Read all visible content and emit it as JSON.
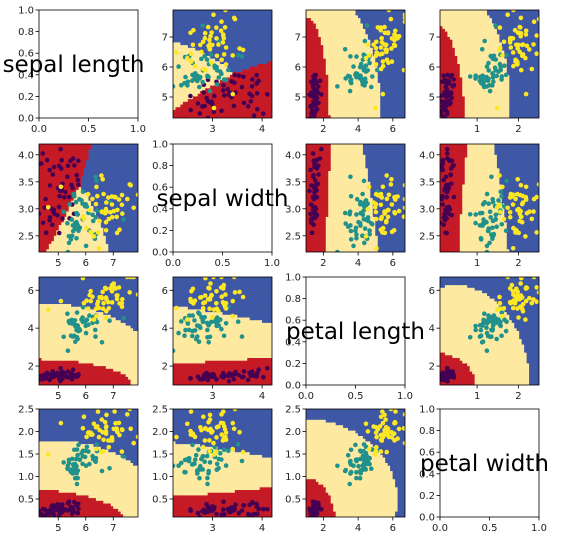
{
  "features": [
    "sepal length",
    "sepal width",
    "petal length",
    "petal width"
  ],
  "colors": {
    "class_0": "#440154",
    "class_1": "#21918c",
    "class_2": "#fde725",
    "region_0": "#c51b27",
    "region_1": "#fdeaa0",
    "region_2": "#3e58a5"
  },
  "chart_data": {
    "type": "scatter",
    "layout": "pair-grid",
    "feature_ranges": [
      [
        4.3,
        7.9
      ],
      [
        2.2,
        4.2
      ],
      [
        1.0,
        6.7
      ],
      [
        0.1,
        2.5
      ]
    ],
    "class_centers": [
      [
        5.0,
        3.4,
        1.46,
        0.25
      ],
      [
        5.94,
        2.77,
        4.26,
        1.33
      ],
      [
        6.59,
        2.97,
        5.55,
        2.03
      ]
    ],
    "class_spread": [
      [
        0.35,
        0.38,
        0.17,
        0.1
      ],
      [
        0.5,
        0.31,
        0.47,
        0.2
      ],
      [
        0.62,
        0.32,
        0.55,
        0.27
      ]
    ],
    "points_per_class": 50,
    "diagonal_axes": {
      "xlim": [
        0,
        1
      ],
      "ylim": [
        0,
        1
      ],
      "ticks": [
        "0.0",
        "0.5",
        "1.0"
      ],
      "yticks": [
        "0.0",
        "0.2",
        "0.4",
        "0.6",
        "0.8",
        "1.0"
      ]
    },
    "tick_labels": {
      "sepal length": [
        "5",
        "6",
        "7"
      ],
      "sepal width": [
        "2.5",
        "3.0",
        "3.5",
        "4.0"
      ],
      "sepal width y": [
        "3",
        "4"
      ],
      "petal length": [
        "2",
        "4",
        "6"
      ],
      "petal width": [
        "0.5",
        "1.0",
        "1.5",
        "2.0",
        "2.5"
      ],
      "petal width x": [
        "1",
        "2"
      ]
    }
  }
}
